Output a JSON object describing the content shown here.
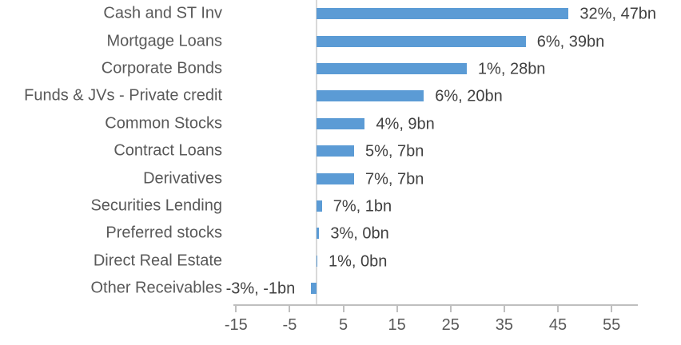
{
  "chart_data": {
    "type": "bar",
    "orientation": "horizontal",
    "title": "",
    "xlabel": "",
    "ylabel": "",
    "grid": false,
    "legend": false,
    "xlim": [
      -15.5,
      59.9
    ],
    "x_ticks": [
      -15,
      -5,
      5,
      15,
      25,
      35,
      45,
      55
    ],
    "unit": "bn",
    "rows": [
      {
        "category": "Cash and ST Inv",
        "pct": "32%",
        "bn": 47,
        "label": "32%, 47bn"
      },
      {
        "category": "Mortgage Loans",
        "pct": "6%",
        "bn": 39,
        "label": "6%, 39bn"
      },
      {
        "category": "Corporate Bonds",
        "pct": "1%",
        "bn": 28,
        "label": "1%, 28bn"
      },
      {
        "category": "Funds & JVs - Private credit",
        "pct": "6%",
        "bn": 20,
        "label": "6%, 20bn"
      },
      {
        "category": "Common Stocks",
        "pct": "4%",
        "bn": 9,
        "label": "4%, 9bn"
      },
      {
        "category": "Contract Loans",
        "pct": "5%",
        "bn": 7,
        "label": "5%, 7bn"
      },
      {
        "category": "Derivatives",
        "pct": "7%",
        "bn": 7,
        "label": "7%, 7bn"
      },
      {
        "category": "Securities Lending",
        "pct": "7%",
        "bn": 1,
        "label": "7%, 1bn"
      },
      {
        "category": "Preferred stocks",
        "pct": "3%",
        "bn": 0,
        "label": "3%, 0bn",
        "render_bn": 0.5
      },
      {
        "category": "Direct Real Estate",
        "pct": "1%",
        "bn": 0,
        "label": "1%, 0bn",
        "render_bn": 0.15
      },
      {
        "category": "Other Receivables",
        "pct": "-3%",
        "bn": -1,
        "label": "-3%, -1bn"
      }
    ],
    "colors": {
      "bar": "#5B9BD5",
      "axis_line": "#BFBFBF",
      "zero_line": "#D9D9D9",
      "category_text": "#595959",
      "tick_text": "#595959",
      "value_text": "#404040"
    }
  }
}
